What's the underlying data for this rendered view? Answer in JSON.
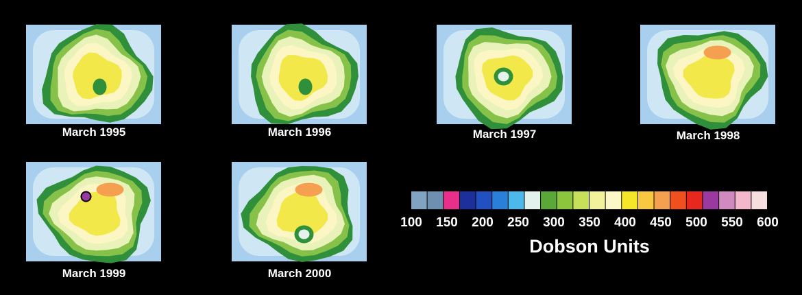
{
  "panels": [
    {
      "label": "March 1995"
    },
    {
      "label": "March 1996"
    },
    {
      "label": "March 1997"
    },
    {
      "label": "March 1998"
    },
    {
      "label": "March 1999"
    },
    {
      "label": "March 2000"
    }
  ],
  "colorbar": {
    "ticks": [
      100,
      150,
      200,
      250,
      300,
      350,
      400,
      450,
      500,
      550,
      600
    ],
    "colors": [
      "#7fa3c0",
      "#6f8fb0",
      "#e8308a",
      "#1c2f9a",
      "#2350c0",
      "#2a7fd8",
      "#4cb8ec",
      "#e4f2ee",
      "#5aa838",
      "#8cc63c",
      "#c6e05a",
      "#f2f29c",
      "#fbf7c6",
      "#f5e62a",
      "#f8c840",
      "#f5a050",
      "#f0501e",
      "#e8281e",
      "#9a3aa0",
      "#d08ac0",
      "#f4b8cc",
      "#f6dede"
    ],
    "label": "Dobson Units"
  }
}
